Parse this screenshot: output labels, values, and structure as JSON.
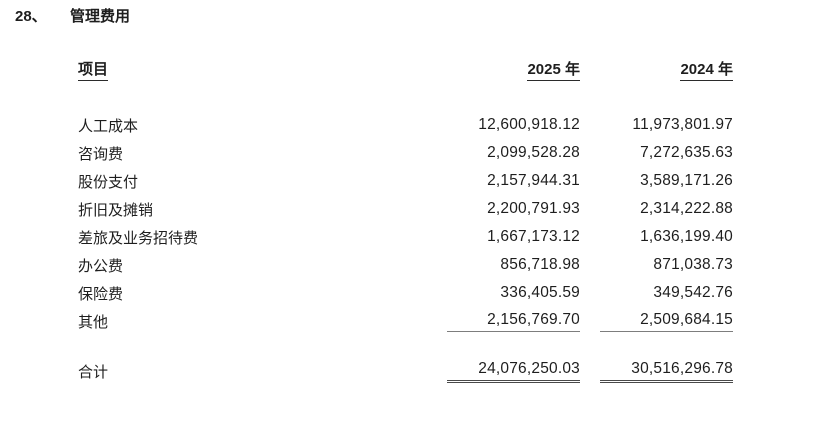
{
  "page": {
    "section_number": "28、",
    "section_title": "管理费用"
  },
  "table": {
    "header": {
      "item": "项目",
      "col_2025": "2025 年",
      "col_2024": "2024 年"
    },
    "rows": [
      {
        "label": "人工成本",
        "v2025": "12,600,918.12",
        "v2024": "11,973,801.97",
        "rule_below": false
      },
      {
        "label": "咨询费",
        "v2025": "2,099,528.28",
        "v2024": "7,272,635.63",
        "rule_below": false
      },
      {
        "label": "股份支付",
        "v2025": "2,157,944.31",
        "v2024": "3,589,171.26",
        "rule_below": false
      },
      {
        "label": "折旧及摊销",
        "v2025": "2,200,791.93",
        "v2024": "2,314,222.88",
        "rule_below": false
      },
      {
        "label": "差旅及业务招待费",
        "v2025": "1,667,173.12",
        "v2024": "1,636,199.40",
        "rule_below": false
      },
      {
        "label": "办公费",
        "v2025": "856,718.98",
        "v2024": "871,038.73",
        "rule_below": false
      },
      {
        "label": "保险费",
        "v2025": "336,405.59",
        "v2024": "349,542.76",
        "rule_below": false
      },
      {
        "label": "其他",
        "v2025": "2,156,769.70",
        "v2024": "2,509,684.15",
        "rule_below": true
      }
    ],
    "total": {
      "label": "合计",
      "v2025": "24,076,250.03",
      "v2024": "30,516,296.78"
    }
  },
  "colors": {
    "text": "#1e1e1e",
    "header_underline": "#2b2b2b",
    "rule_thin": "#7d7d7d",
    "rule_total": "#4a4a4a",
    "background": "#ffffff"
  }
}
